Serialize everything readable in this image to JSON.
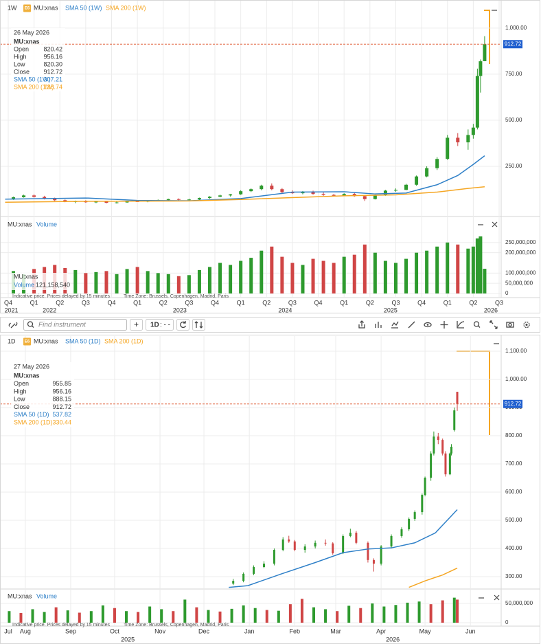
{
  "toolbar": {
    "search_placeholder": "Find instrument",
    "add": "+",
    "interval": "1D",
    "interval_suffix": ": - -"
  },
  "chart_data": [
    {
      "type": "candlestick",
      "interval": "1W",
      "badge": "E6",
      "symbol": "MU:xnas",
      "up_color": "#2e9a2e",
      "down_color": "#d04545",
      "grid": true,
      "info": {
        "date": "26 May 2026",
        "symbol": "MU:xnas",
        "rows": [
          [
            "Open",
            "820.42"
          ],
          [
            "High",
            "956.16"
          ],
          [
            "Low",
            "820.30"
          ],
          [
            "Close",
            "912.72"
          ],
          [
            "SMA 50 (1W)",
            "307.21"
          ],
          [
            "SMA 200 (1W)",
            "138.74"
          ]
        ]
      },
      "xlim": [
        2021.717,
        2026.52
      ],
      "xticks": [
        {
          "value": 2021.75,
          "label": "Q4"
        },
        {
          "value": 2022.0,
          "label": "Q1"
        },
        {
          "value": 2022.25,
          "label": "Q2"
        },
        {
          "value": 2022.5,
          "label": "Q3"
        },
        {
          "value": 2022.75,
          "label": "Q4"
        },
        {
          "value": 2023.0,
          "label": "Q1"
        },
        {
          "value": 2023.25,
          "label": "Q2"
        },
        {
          "value": 2023.5,
          "label": "Q3"
        },
        {
          "value": 2023.75,
          "label": "Q4"
        },
        {
          "value": 2024.0,
          "label": "Q1"
        },
        {
          "value": 2024.25,
          "label": "Q2"
        },
        {
          "value": 2024.5,
          "label": "Q3"
        },
        {
          "value": 2024.75,
          "label": "Q4"
        },
        {
          "value": 2025.0,
          "label": "Q1"
        },
        {
          "value": 2025.25,
          "label": "Q2"
        },
        {
          "value": 2025.5,
          "label": "Q3"
        },
        {
          "value": 2025.75,
          "label": "Q4"
        },
        {
          "value": 2026.0,
          "label": "Q1"
        },
        {
          "value": 2026.25,
          "label": "Q2"
        },
        {
          "value": 2026.5,
          "label": "Q3"
        }
      ],
      "year_ticks": [
        {
          "value": 2021.78,
          "label": "2021"
        },
        {
          "value": 2022.15,
          "label": "2022"
        },
        {
          "value": 2023.41,
          "label": "2023"
        },
        {
          "value": 2024.43,
          "label": "2024"
        },
        {
          "value": 2025.45,
          "label": "2025"
        },
        {
          "value": 2026.42,
          "label": "2026"
        }
      ],
      "ylim": [
        0,
        1130
      ],
      "yticks": [
        {
          "value": 250,
          "label": "250.00"
        },
        {
          "value": 500,
          "label": "500.00"
        },
        {
          "value": 750,
          "label": "750.00"
        },
        {
          "value": 1000,
          "label": "1,000.00"
        }
      ],
      "last_price": 912.72,
      "candles": {
        "x": [
          2021.8,
          2021.9,
          2022.0,
          2022.1,
          2022.2,
          2022.3,
          2022.4,
          2022.5,
          2022.6,
          2022.7,
          2022.8,
          2022.9,
          2023.0,
          2023.1,
          2023.2,
          2023.3,
          2023.4,
          2023.5,
          2023.6,
          2023.7,
          2023.8,
          2023.9,
          2024.0,
          2024.1,
          2024.2,
          2024.3,
          2024.4,
          2024.5,
          2024.6,
          2024.7,
          2024.8,
          2024.9,
          2025.0,
          2025.1,
          2025.2,
          2025.3,
          2025.4,
          2025.5,
          2025.6,
          2025.7,
          2025.8,
          2025.9,
          2026.0,
          2026.1,
          2026.2,
          2026.25,
          2026.29,
          2026.32,
          2026.36
        ],
        "open": [
          70,
          82,
          92,
          84,
          74,
          66,
          58,
          60,
          55,
          58,
          52,
          54,
          60,
          58,
          62,
          66,
          72,
          68,
          70,
          78,
          85,
          92,
          98,
          115,
          126,
          145,
          126,
          110,
          104,
          112,
          100,
          95,
          90,
          100,
          88,
          72,
          92,
          118,
          122,
          150,
          195,
          240,
          290,
          405,
          380,
          420,
          460,
          740,
          820.42
        ],
        "high": [
          85,
          96,
          98,
          90,
          80,
          70,
          64,
          66,
          62,
          62,
          58,
          62,
          66,
          64,
          70,
          74,
          76,
          74,
          80,
          88,
          96,
          100,
          120,
          130,
          150,
          157,
          132,
          120,
          116,
          118,
          108,
          100,
          104,
          106,
          92,
          96,
          122,
          130,
          155,
          200,
          250,
          300,
          420,
          430,
          450,
          480,
          780,
          830,
          956.16
        ],
        "low": [
          68,
          80,
          80,
          70,
          62,
          55,
          50,
          52,
          50,
          49,
          48,
          52,
          56,
          55,
          60,
          62,
          64,
          64,
          66,
          74,
          82,
          86,
          95,
          110,
          120,
          120,
          100,
          100,
          98,
          96,
          90,
          86,
          88,
          85,
          62,
          70,
          90,
          112,
          120,
          145,
          190,
          230,
          285,
          360,
          340,
          400,
          450,
          650,
          820.3
        ],
        "close": [
          82,
          92,
          84,
          74,
          66,
          58,
          60,
          55,
          58,
          52,
          54,
          60,
          58,
          62,
          66,
          72,
          68,
          70,
          78,
          85,
          92,
          98,
          115,
          126,
          145,
          126,
          110,
          104,
          112,
          100,
          95,
          90,
          100,
          88,
          72,
          92,
          118,
          122,
          150,
          195,
          240,
          290,
          405,
          380,
          420,
          460,
          740,
          820,
          912.72
        ]
      },
      "overlays": [
        {
          "name": "SMA 50 (1W)",
          "color": "#2f80c8",
          "x": [
            2021.72,
            2022.5,
            2023.0,
            2023.5,
            2024.0,
            2024.5,
            2025.0,
            2025.3,
            2025.6,
            2025.9,
            2026.1,
            2026.25,
            2026.36
          ],
          "values": [
            72,
            78,
            65,
            63,
            75,
            110,
            112,
            100,
            105,
            150,
            200,
            260,
            307.21
          ]
        },
        {
          "name": "SMA 200 (1W)",
          "color": "#f5a623",
          "x": [
            2021.72,
            2022.5,
            2023.5,
            2024.0,
            2024.5,
            2025.0,
            2025.5,
            2025.9,
            2026.2,
            2026.36
          ],
          "values": [
            55,
            60,
            62,
            70,
            80,
            90,
            95,
            110,
            130,
            138.74
          ]
        }
      ],
      "volume": {
        "symbol": "MU:xnas",
        "name": "Volume",
        "readout_symbol": "MU:xnas",
        "readout_name": "Volume",
        "readout": "121,158,540",
        "ylim": [
          0,
          300000000
        ],
        "yticks": [
          0,
          {
            "value": 50000000,
            "label": "50,000,000"
          },
          {
            "value": 100000000,
            "label": "100,000,000"
          },
          {
            "value": 200000000,
            "label": "200,000,000"
          },
          {
            "value": 250000000,
            "label": "250,000,000"
          }
        ],
        "values": [
          110000000,
          95000000,
          120000000,
          130000000,
          140000000,
          125000000,
          115000000,
          100000000,
          105000000,
          110000000,
          95000000,
          120000000,
          130000000,
          110000000,
          100000000,
          95000000,
          85000000,
          90000000,
          115000000,
          130000000,
          150000000,
          140000000,
          160000000,
          175000000,
          210000000,
          230000000,
          180000000,
          150000000,
          140000000,
          170000000,
          160000000,
          150000000,
          180000000,
          190000000,
          240000000,
          200000000,
          160000000,
          150000000,
          170000000,
          200000000,
          210000000,
          230000000,
          250000000,
          240000000,
          220000000,
          230000000,
          270000000,
          280000000,
          121158540
        ]
      },
      "notes": [
        "Indicative price. Prices delayed by 15 minutes",
        "Time Zone: Brussels, Copenhagen, Madrid, Paris"
      ]
    },
    {
      "type": "candlestick",
      "interval": "1D",
      "badge": "E6",
      "symbol": "MU:xnas",
      "up_color": "#2e9a2e",
      "down_color": "#d04545",
      "grid": true,
      "info": {
        "date": "27 May 2026",
        "symbol": "MU:xnas",
        "rows": [
          [
            "Open",
            "955.85"
          ],
          [
            "High",
            "956.16"
          ],
          [
            "Low",
            "888.15"
          ],
          [
            "Close",
            "912.72"
          ],
          [
            "SMA 50 (1D)",
            "537.82"
          ],
          [
            "SMA 200 (1D)",
            "330.44"
          ]
        ]
      },
      "xlim": [
        17,
        356
      ],
      "xticks": [
        {
          "value": 0,
          "label": "Jul"
        },
        {
          "value": 31,
          "label": "Aug"
        },
        {
          "value": 62,
          "label": "Sep"
        },
        {
          "value": 92,
          "label": "Oct"
        },
        {
          "value": 123,
          "label": "Nov"
        },
        {
          "value": 153,
          "label": "Dec"
        },
        {
          "value": 184,
          "label": "Jan"
        },
        {
          "value": 215,
          "label": "Feb"
        },
        {
          "value": 243,
          "label": "Mar"
        },
        {
          "value": 274,
          "label": "Apr"
        },
        {
          "value": 304,
          "label": "May"
        },
        {
          "value": 335,
          "label": "Jun"
        }
      ],
      "year_ticks": [
        {
          "value": 101,
          "label": "2025"
        },
        {
          "value": 282,
          "label": "2026"
        }
      ],
      "ylim": [
        260,
        1145
      ],
      "yticks": [
        {
          "value": 300,
          "label": "300.00"
        },
        {
          "value": 400,
          "label": "400.00"
        },
        {
          "value": 500,
          "label": "500.00"
        },
        {
          "value": 600,
          "label": "600.00"
        },
        {
          "value": 700,
          "label": "700.00"
        },
        {
          "value": 800,
          "label": "800.00"
        },
        {
          "value": 900,
          "label": "900.00"
        },
        {
          "value": 1000,
          "label": "1,000.00"
        },
        {
          "value": 1100,
          "label": "1,100.00"
        }
      ],
      "last_price": 912.72,
      "candles": {
        "x": [
          173,
          180,
          187,
          194,
          201,
          207,
          211,
          215,
          222,
          229,
          236,
          241,
          248,
          253,
          257,
          265,
          269,
          274,
          281,
          288,
          293,
          297,
          302,
          304,
          308,
          310,
          313,
          316,
          318,
          321,
          322,
          324,
          326
        ],
        "open": [
          275,
          285,
          310,
          334,
          346,
          395,
          432,
          425,
          395,
          407,
          420,
          418,
          383,
          444,
          456,
          420,
          359,
          346,
          407,
          444,
          468,
          505,
          529,
          590,
          651,
          737,
          797,
          785,
          737,
          663,
          737,
          820,
          955.85
        ],
        "high": [
          292,
          315,
          340,
          355,
          400,
          440,
          445,
          430,
          415,
          428,
          432,
          422,
          450,
          470,
          462,
          425,
          365,
          412,
          450,
          475,
          510,
          535,
          595,
          655,
          745,
          815,
          810,
          790,
          745,
          740,
          770,
          900,
          956.16
        ],
        "low": [
          270,
          280,
          305,
          330,
          340,
          390,
          420,
          390,
          385,
          400,
          410,
          378,
          380,
          440,
          415,
          350,
          318,
          340,
          400,
          438,
          462,
          498,
          520,
          585,
          640,
          730,
          770,
          730,
          655,
          660,
          730,
          815,
          888.15
        ],
        "close": [
          285,
          310,
          334,
          346,
          395,
          432,
          425,
          395,
          407,
          420,
          418,
          383,
          444,
          456,
          420,
          359,
          346,
          407,
          444,
          468,
          505,
          529,
          590,
          651,
          737,
          797,
          785,
          737,
          663,
          737,
          761,
          890,
          912.72
        ]
      },
      "overlays": [
        {
          "name": "SMA 50 (1D)",
          "color": "#2f80c8",
          "x": [
            170,
            183,
            206,
            229,
            248,
            265,
            281,
            297,
            311,
            326
          ],
          "values": [
            262,
            268,
            310,
            350,
            385,
            398,
            402,
            420,
            455,
            537.82
          ]
        },
        {
          "name": "SMA 200 (1D)",
          "color": "#f5a623",
          "x": [
            293,
            304,
            316,
            326
          ],
          "values": [
            262,
            285,
            306,
            330.44
          ]
        }
      ],
      "volume": {
        "symbol": "MU:xnas",
        "name": "Volume",
        "ylim": [
          0,
          90000000
        ],
        "yticks": [
          0,
          {
            "value": 50000000,
            "label": "50,000,000"
          }
        ],
        "x": [
          20,
          28,
          36,
          44,
          52,
          60,
          68,
          76,
          84,
          92,
          100,
          108,
          116,
          124,
          132,
          140,
          148,
          156,
          164,
          172,
          180,
          188,
          196,
          204,
          212,
          220,
          228,
          236,
          244,
          252,
          260,
          268,
          276,
          284,
          292,
          300,
          308,
          316,
          324,
          326
        ],
        "values": [
          30000000,
          25000000,
          35000000,
          28000000,
          40000000,
          32000000,
          26000000,
          30000000,
          45000000,
          38000000,
          30000000,
          28000000,
          42000000,
          35000000,
          30000000,
          60000000,
          40000000,
          33000000,
          29000000,
          36000000,
          45000000,
          38000000,
          33000000,
          31000000,
          48000000,
          62000000,
          40000000,
          35000000,
          30000000,
          44000000,
          38000000,
          50000000,
          42000000,
          46000000,
          52000000,
          55000000,
          48000000,
          58000000,
          65000000,
          60000000
        ],
        "colors": [
          "#2e9a2e",
          "#d04545",
          "#2e9a2e",
          "#2e9a2e",
          "#d04545",
          "#2e9a2e",
          "#d04545",
          "#2e9a2e",
          "#2e9a2e",
          "#d04545",
          "#2e9a2e",
          "#d04545",
          "#2e9a2e",
          "#2e9a2e",
          "#d04545",
          "#2e9a2e",
          "#d04545",
          "#2e9a2e",
          "#d04545",
          "#2e9a2e",
          "#2e9a2e",
          "#2e9a2e",
          "#d04545",
          "#2e9a2e",
          "#d04545",
          "#d04545",
          "#2e9a2e",
          "#2e9a2e",
          "#d04545",
          "#2e9a2e",
          "#d04545",
          "#2e9a2e",
          "#2e9a2e",
          "#2e9a2e",
          "#2e9a2e",
          "#2e9a2e",
          "#d04545",
          "#d04545",
          "#2e9a2e",
          "#d04545"
        ]
      },
      "notes": [
        "Indicative price. Prices delayed by 15 minutes",
        "Time Zone: Brussels, Copenhagen, Madrid, Paris"
      ]
    }
  ]
}
